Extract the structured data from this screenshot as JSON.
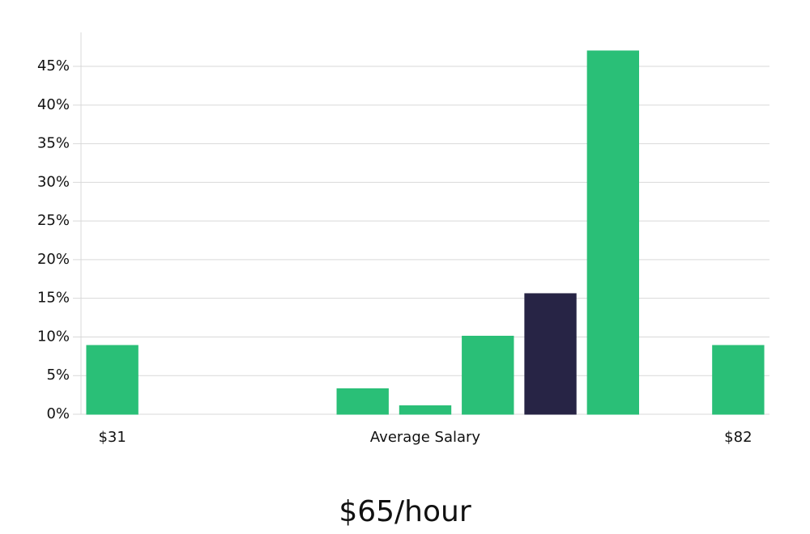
{
  "chart_data": {
    "type": "bar",
    "categories": [
      "$31",
      null,
      null,
      null,
      null,
      null,
      null,
      null,
      null,
      null,
      "$82"
    ],
    "values": [
      8.9,
      0,
      0,
      0,
      3.3,
      1.1,
      10.1,
      15.6,
      47,
      0,
      8.9
    ],
    "colors": [
      "#2abf77",
      "#2abf77",
      "#2abf77",
      "#2abf77",
      "#2abf77",
      "#2abf77",
      "#2abf77",
      "#272445",
      "#2abf77",
      "#2abf77",
      "#2abf77"
    ],
    "x_label": "Average Salary",
    "annotation": "$65/hour",
    "ylim": [
      0,
      49.4
    ],
    "yticks": [
      {
        "value": 0,
        "label": "0%"
      },
      {
        "value": 5,
        "label": "5%"
      },
      {
        "value": 10,
        "label": "10%"
      },
      {
        "value": 15,
        "label": "15%"
      },
      {
        "value": 20,
        "label": "20%"
      },
      {
        "value": 25,
        "label": "25%"
      },
      {
        "value": 30,
        "label": "30%"
      },
      {
        "value": 35,
        "label": "35%"
      },
      {
        "value": 40,
        "label": "40%"
      },
      {
        "value": 45,
        "label": "45%"
      }
    ],
    "grid": true
  }
}
